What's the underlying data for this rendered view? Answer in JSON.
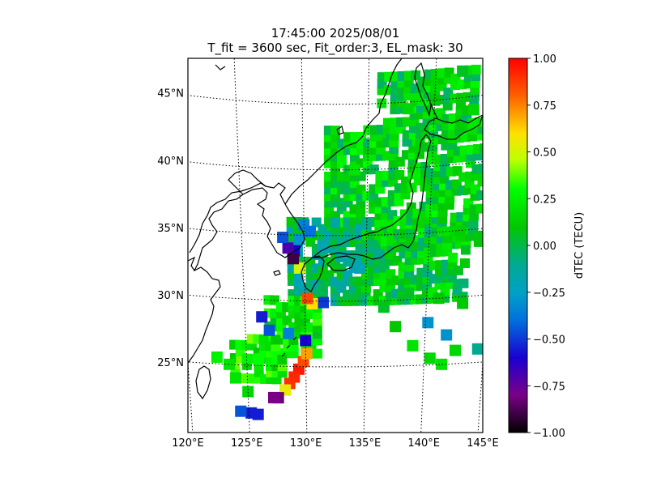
{
  "title": {
    "line1": "17:45:00 2025/08/01",
    "line2": "T_fit = 3600 sec, Fit_order:3, EL_mask: 30"
  },
  "map": {
    "lon_ticks": [
      {
        "value": 120,
        "label": "120°E"
      },
      {
        "value": 125,
        "label": "125°E"
      },
      {
        "value": 130,
        "label": "130°E"
      },
      {
        "value": 135,
        "label": "135°E"
      },
      {
        "value": 140,
        "label": "140°E"
      },
      {
        "value": 145,
        "label": "145°E"
      }
    ],
    "lat_ticks": [
      {
        "value": 25,
        "label": "25°N"
      },
      {
        "value": 30,
        "label": "30°N"
      },
      {
        "value": 35,
        "label": "35°N"
      },
      {
        "value": 40,
        "label": "40°N"
      },
      {
        "value": 45,
        "label": "45°N"
      }
    ],
    "lon_range": [
      120,
      145
    ],
    "lat_range": [
      20,
      48
    ],
    "grid": "dotted",
    "coastline_color": "#000000"
  },
  "colorbar": {
    "label": "dTEC (TECU)",
    "range": [
      -1.0,
      1.0
    ],
    "colormap": "nipy_spectral",
    "ticks": [
      {
        "value": 1.0,
        "label": "1.00"
      },
      {
        "value": 0.75,
        "label": "0.75"
      },
      {
        "value": 0.5,
        "label": "0.50"
      },
      {
        "value": 0.25,
        "label": "0.25"
      },
      {
        "value": 0.0,
        "label": "0.00"
      },
      {
        "value": -0.25,
        "label": "−0.25"
      },
      {
        "value": -0.5,
        "label": "−0.50"
      },
      {
        "value": -0.75,
        "label": "−0.75"
      },
      {
        "value": -1.0,
        "label": "−1.00"
      }
    ]
  },
  "chart_data": {
    "type": "heatmap",
    "title": "17:45:00 2025/08/01\nT_fit = 3600 sec, Fit_order:3, EL_mask: 30",
    "colorbar_label": "dTEC (TECU)",
    "value_range": [
      -1.0,
      1.0
    ],
    "cells": [
      {
        "lon": 129.4,
        "lat": 24.8,
        "v": 0.95
      },
      {
        "lon": 129.0,
        "lat": 24.2,
        "v": 0.92
      },
      {
        "lon": 128.6,
        "lat": 23.7,
        "v": 0.9
      },
      {
        "lon": 129.8,
        "lat": 25.4,
        "v": 0.85
      },
      {
        "lon": 130.1,
        "lat": 26.0,
        "v": 0.7
      },
      {
        "lon": 128.2,
        "lat": 23.2,
        "v": 0.55
      },
      {
        "lon": 127.6,
        "lat": 22.6,
        "v": -0.82
      },
      {
        "lon": 127.2,
        "lat": 22.6,
        "v": -0.8
      },
      {
        "lon": 125.8,
        "lat": 21.3,
        "v": -0.55
      },
      {
        "lon": 125.2,
        "lat": 21.4,
        "v": -0.55
      },
      {
        "lon": 124.3,
        "lat": 21.5,
        "v": -0.45
      },
      {
        "lon": 126.4,
        "lat": 28.7,
        "v": -0.55
      },
      {
        "lon": 127.0,
        "lat": 27.7,
        "v": -0.45
      },
      {
        "lon": 128.6,
        "lat": 27.5,
        "v": -0.35
      },
      {
        "lon": 130.0,
        "lat": 27.0,
        "v": -0.6
      },
      {
        "lon": 131.5,
        "lat": 29.9,
        "v": -0.5
      },
      {
        "lon": 130.6,
        "lat": 29.8,
        "v": 0.6
      },
      {
        "lon": 130.2,
        "lat": 30.2,
        "v": 0.85
      },
      {
        "lon": 129.6,
        "lat": 32.5,
        "v": 0.5
      },
      {
        "lon": 129.2,
        "lat": 33.8,
        "v": -0.6
      },
      {
        "lon": 128.7,
        "lat": 34.0,
        "v": -0.7
      },
      {
        "lon": 128.3,
        "lat": 34.8,
        "v": -0.45
      },
      {
        "lon": 129.6,
        "lat": 34.7,
        "v": -0.3
      },
      {
        "lon": 130.0,
        "lat": 35.8,
        "v": -0.35
      },
      {
        "lon": 130.5,
        "lat": 35.3,
        "v": -0.4
      },
      {
        "lon": 129.1,
        "lat": 33.2,
        "v": -0.9
      },
      {
        "lon": 131.5,
        "lat": 34.2,
        "v": -0.2
      },
      {
        "lon": 133.0,
        "lat": 33.4,
        "v": -0.15
      },
      {
        "lon": 134.5,
        "lat": 32.5,
        "v": -0.2
      },
      {
        "lon": 136.0,
        "lat": 33.5,
        "v": -0.1
      },
      {
        "lon": 140.2,
        "lat": 28.2,
        "v": -0.3
      },
      {
        "lon": 141.8,
        "lat": 27.2,
        "v": -0.3
      },
      {
        "lon": 142.6,
        "lat": 26.0,
        "v": 0.15
      },
      {
        "lon": 140.5,
        "lat": 25.5,
        "v": 0.15
      },
      {
        "lon": 141.5,
        "lat": 25.0,
        "v": 0.2
      },
      {
        "lon": 139.0,
        "lat": 26.5,
        "v": 0.2
      },
      {
        "lon": 137.5,
        "lat": 28.0,
        "v": 0.1
      },
      {
        "lon": 136.5,
        "lat": 29.5,
        "v": 0.05
      },
      {
        "lon": 138.5,
        "lat": 30.5,
        "v": 0.05
      },
      {
        "lon": 141.0,
        "lat": 30.0,
        "v": 0.1
      },
      {
        "lon": 143.0,
        "lat": 29.5,
        "v": 0.1
      },
      {
        "lon": 144.5,
        "lat": 26.0,
        "v": -0.1
      },
      {
        "lon": 125.0,
        "lat": 23.0,
        "v": 0.15
      },
      {
        "lon": 123.5,
        "lat": 25.0,
        "v": 0.2
      },
      {
        "lon": 122.5,
        "lat": 25.5,
        "v": 0.25
      },
      {
        "lon": 126.0,
        "lat": 25.5,
        "v": 0.3
      },
      {
        "lon": 124.0,
        "lat": 24.0,
        "v": 0.2
      },
      {
        "lon": 134.0,
        "lat": 40.0,
        "v": 0.2
      },
      {
        "lon": 138.0,
        "lat": 44.5,
        "v": 0.15
      },
      {
        "lon": 140.0,
        "lat": 45.0,
        "v": 0.1
      },
      {
        "lon": 142.0,
        "lat": 47.0,
        "v": 0.05
      },
      {
        "lon": 143.0,
        "lat": 44.0,
        "v": 0.15
      }
    ],
    "regions": [
      {
        "lon": [
          132,
          144
        ],
        "lat": [
          34,
          43
        ],
        "v": 0.12
      },
      {
        "lon": [
          129,
          135
        ],
        "lat": [
          30,
          36
        ],
        "v": -0.05
      },
      {
        "lon": [
          135,
          143
        ],
        "lat": [
          30,
          35
        ],
        "v": 0.08
      },
      {
        "lon": [
          136,
          143
        ],
        "lat": [
          42,
          47
        ],
        "v": 0.1
      },
      {
        "lon": [
          127,
          131
        ],
        "lat": [
          26,
          30
        ],
        "v": 0.2
      },
      {
        "lon": [
          124,
          128
        ],
        "lat": [
          24,
          27
        ],
        "v": 0.25
      }
    ]
  }
}
